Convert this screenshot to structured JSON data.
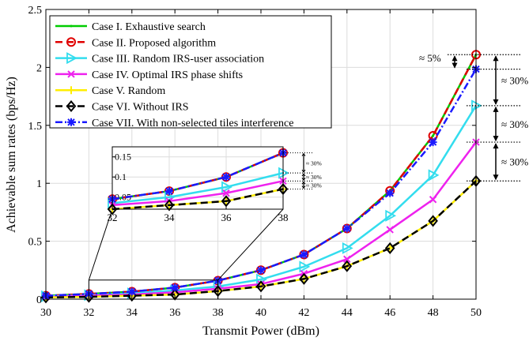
{
  "chart_data": {
    "type": "line",
    "xlabel": "Transmit Power (dBm)",
    "ylabel": "Achievable sum rates (bps/Hz)",
    "xlim": [
      30,
      50
    ],
    "ylim": [
      0,
      2.5
    ],
    "x": [
      30,
      32,
      34,
      36,
      38,
      40,
      42,
      44,
      46,
      48,
      50
    ],
    "x_ticks": [
      "30",
      "32",
      "34",
      "36",
      "38",
      "40",
      "42",
      "44",
      "46",
      "48",
      "50"
    ],
    "y_ticks": [
      "0",
      "0.5",
      "1",
      "1.5",
      "2",
      "2.5"
    ],
    "grid": true,
    "legend_position": "top-left",
    "series": [
      {
        "name": "Case I. Exhaustive search",
        "color": "#00cc00",
        "dash": "solid",
        "marker": "dot",
        "values": [
          0.03,
          0.045,
          0.065,
          0.1,
          0.16,
          0.25,
          0.385,
          0.61,
          0.935,
          1.41,
          2.11
        ]
      },
      {
        "name": "Case II. Proposed algorithm",
        "color": "#e00000",
        "dash": "dashed",
        "marker": "circle",
        "values": [
          0.03,
          0.045,
          0.065,
          0.1,
          0.16,
          0.25,
          0.385,
          0.61,
          0.935,
          1.41,
          2.11
        ]
      },
      {
        "name": "Case III. Random IRS-user association",
        "color": "#33ddee",
        "dash": "solid",
        "marker": "triangle-right",
        "values": [
          0.025,
          0.035,
          0.05,
          0.075,
          0.11,
          0.17,
          0.28,
          0.44,
          0.72,
          1.07,
          1.67
        ]
      },
      {
        "name": "Case IV. Optimal IRS phase shifts",
        "color": "#ee22ee",
        "dash": "solid",
        "marker": "x",
        "values": [
          0.02,
          0.03,
          0.04,
          0.06,
          0.09,
          0.13,
          0.22,
          0.345,
          0.6,
          0.86,
          1.355
        ]
      },
      {
        "name": "Case V. Random",
        "color": "#ffee00",
        "dash": "solid",
        "marker": "plus",
        "values": [
          0.015,
          0.02,
          0.03,
          0.04,
          0.07,
          0.11,
          0.175,
          0.285,
          0.44,
          0.675,
          1.02
        ]
      },
      {
        "name": "Case VI. Without IRS",
        "color": "#000000",
        "dash": "dashed",
        "marker": "diamond",
        "values": [
          0.015,
          0.02,
          0.03,
          0.04,
          0.07,
          0.11,
          0.175,
          0.285,
          0.44,
          0.675,
          1.02
        ]
      },
      {
        "name": "Case VII. With non-selected tiles interference",
        "color": "#1a1aff",
        "dash": "dashdot",
        "marker": "star",
        "values": [
          0.03,
          0.045,
          0.065,
          0.1,
          0.16,
          0.25,
          0.385,
          0.61,
          0.915,
          1.355,
          1.985
        ]
      }
    ],
    "inset": {
      "xlim": [
        32,
        38
      ],
      "ylim": [
        0.02,
        0.175
      ],
      "x_ticks": [
        "32",
        "34",
        "36",
        "38"
      ],
      "y_ticks": [
        "0.05",
        "0.1",
        "0.15"
      ],
      "annotations": [
        "≈ 30%",
        "≈ 30%",
        "≈ 30%"
      ]
    },
    "annotations": [
      "≈ 5%",
      "≈ 30%",
      "≈ 30%",
      "≈ 30%"
    ]
  }
}
